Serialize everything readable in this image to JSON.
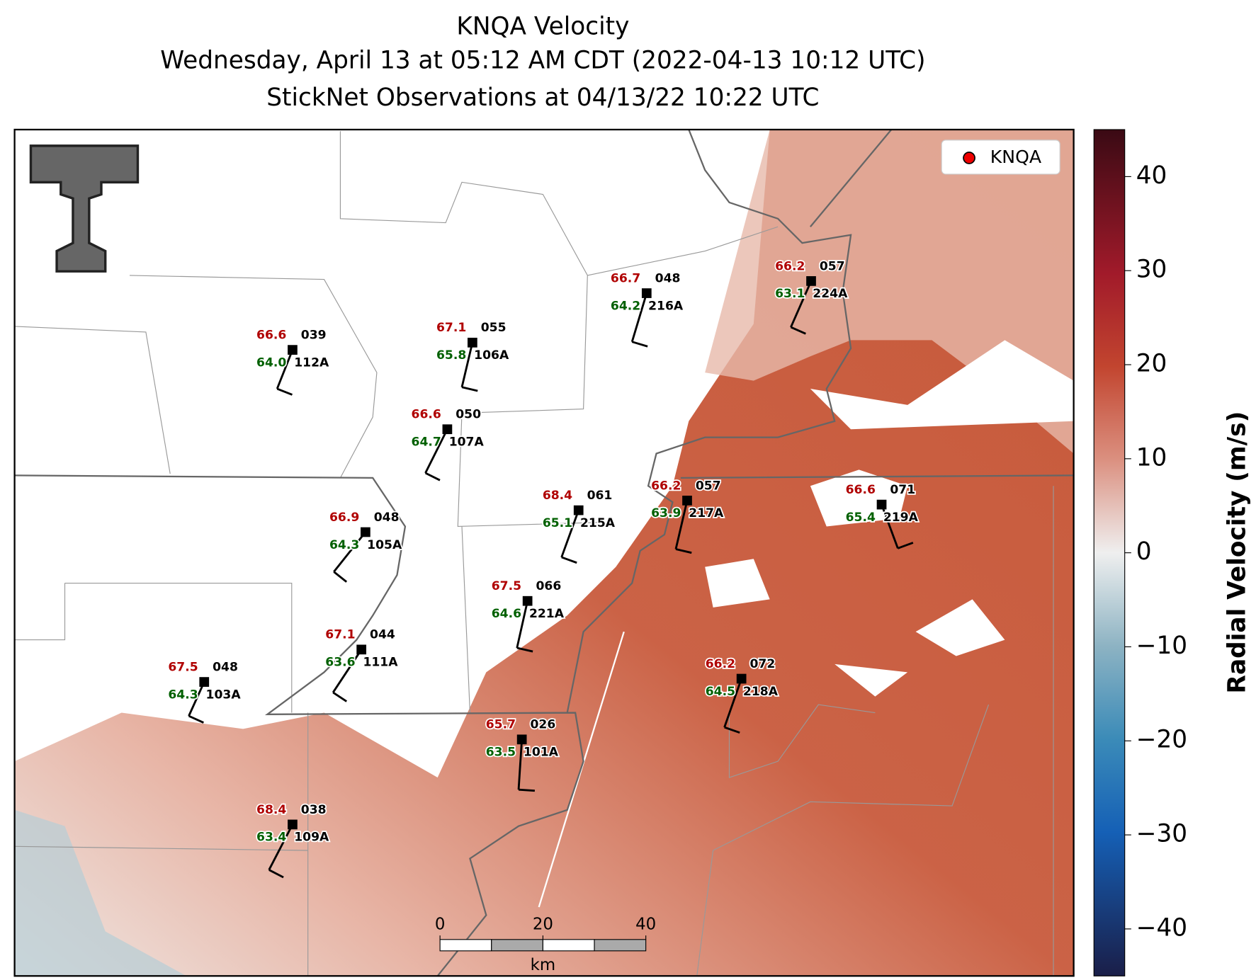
{
  "title": [
    "KNQA Velocity",
    "Wednesday, April 13 at 05:12 AM CDT (2022-04-13 10:12 UTC)",
    "StickNet Observations at 04/13/22 10:22 UTC"
  ],
  "legend": "KNQA",
  "stations": [
    {
      "temp": 66.6,
      "code": "039",
      "dewpoint": {
        "value": 64,
        "label": "64.0"
      },
      "id": "112A"
    },
    {
      "temp": 67.1,
      "code": "055",
      "dewpoint": 65.8,
      "id": "106A"
    },
    {
      "temp": 66.7,
      "code": "048",
      "dewpoint": 64.2,
      "id": "216A"
    },
    {
      "temp": 66.2,
      "code": "057",
      "dewpoint": 63.1,
      "id": "224A"
    },
    {
      "temp": 66.6,
      "code": "050",
      "dewpoint": 64.7,
      "id": "107A"
    },
    {
      "temp": 68.4,
      "code": "061",
      "dewpoint": 65.1,
      "id": "215A"
    },
    {
      "temp": 66.2,
      "code": "057",
      "dewpoint": 63.9,
      "id": "217A"
    },
    {
      "temp": 66.6,
      "code": "071",
      "dewpoint": 65.4,
      "id": "219A"
    },
    {
      "temp": 66.9,
      "code": "048",
      "dewpoint": 64.3,
      "id": "105A"
    },
    {
      "temp": 67.5,
      "code": "066",
      "dewpoint": 64.6,
      "id": "221A"
    },
    {
      "temp": 67.1,
      "code": "044",
      "dewpoint": 63.6,
      "id": "111A"
    },
    {
      "temp": 67.5,
      "code": "048",
      "dewpoint": 64.3,
      "id": "103A"
    },
    {
      "temp": 66.2,
      "code": "072",
      "dewpoint": 64.5,
      "id": "218A"
    },
    {
      "temp": 65.7,
      "code": "026",
      "dewpoint": 63.5,
      "id": "101A"
    },
    {
      "temp": 68.4,
      "code": "038",
      "dewpoint": 63.4,
      "id": "109A"
    }
  ],
  "colorbar": {
    "label": "Radial Velocity (m/s)",
    "lim": [
      -45,
      45
    ],
    "ticks": [
      {
        "value": -40,
        "label": "−40"
      },
      {
        "value": -30,
        "label": "−30"
      },
      {
        "value": -20,
        "label": "−20"
      },
      {
        "value": -10,
        "label": "−10"
      },
      0,
      10,
      20,
      30,
      40
    ]
  },
  "scale_bar": {
    "unit": "km",
    "lim": [
      0,
      40
    ],
    "ticks": [
      0,
      20,
      40
    ]
  }
}
